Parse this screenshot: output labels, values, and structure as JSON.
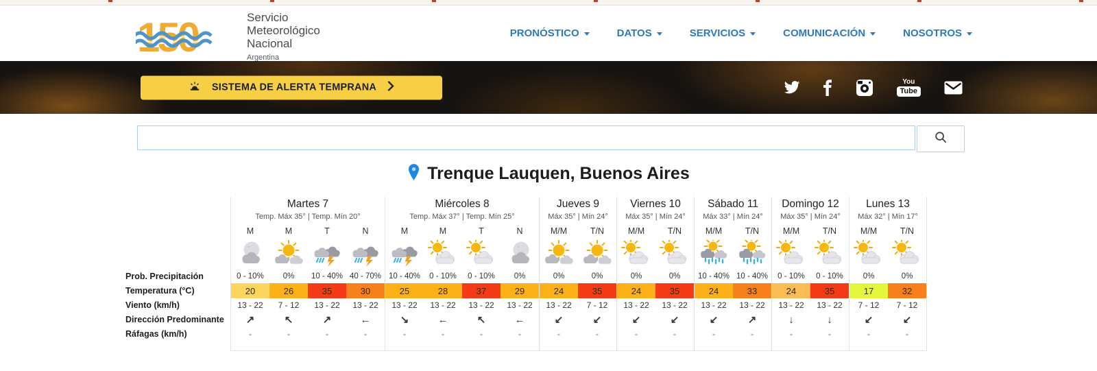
{
  "header": {
    "logo": {
      "anniversary": "150",
      "name_lines": [
        "Servicio",
        "Meteorológico",
        "Nacional"
      ],
      "country": "Argentina"
    },
    "nav": [
      {
        "label": "PRONÓSTICO"
      },
      {
        "label": "DATOS"
      },
      {
        "label": "SERVICIOS"
      },
      {
        "label": "COMUNICACIÓN"
      },
      {
        "label": "NOSOTROS"
      }
    ]
  },
  "hero": {
    "alert_label": "SISTEMA DE ALERTA TEMPRANA",
    "social_icons": [
      "twitter-icon",
      "facebook-icon",
      "instagram-icon",
      "youtube-icon",
      "email-icon"
    ]
  },
  "search": {
    "value": "",
    "placeholder": ""
  },
  "location": {
    "title": "Trenque Lauquen, Buenos Aires"
  },
  "colors": {
    "nav_blue": "#2e79b9",
    "alert_yellow": "#f7cf45",
    "temp_red": "#f43a17",
    "temp_orange": "#f8801c",
    "temp_amber": "#fbb117",
    "temp_light_gold": "#fbd55e",
    "temp_sandy": "#fbbb55",
    "temp_chartreuse": "#e3f63c"
  },
  "forecast": {
    "row_labels": [
      "Prob. Precipitación",
      "Temperatura (°C)",
      "Viento (km/h)",
      "Dirección Predominante",
      "Ráfagas (km/h)"
    ],
    "days": [
      {
        "name": "Martes 7",
        "subtitle": "Temp. Máx 35° | Temp. Mín 20°",
        "periods": [
          "M",
          "M",
          "T",
          "N"
        ],
        "cells": [
          {
            "icon": "moon-cloud",
            "precip": "0 - 10%",
            "temp": "20",
            "temp_color": "#fbd55e",
            "wind": "13 - 22",
            "direction": "↗",
            "gusts": "-"
          },
          {
            "icon": "sun-clouds-gray",
            "precip": "0%",
            "temp": "26",
            "temp_color": "#fbb117",
            "wind": "7 - 12",
            "direction": "↖",
            "gusts": "-"
          },
          {
            "icon": "storm",
            "precip": "10 - 40%",
            "temp": "35",
            "temp_color": "#f43a17",
            "wind": "13 - 22",
            "direction": "↗",
            "gusts": "-"
          },
          {
            "icon": "storm",
            "precip": "40 - 70%",
            "temp": "30",
            "temp_color": "#f8801c",
            "wind": "13 - 22",
            "direction": "←",
            "gusts": "-"
          }
        ]
      },
      {
        "name": "Miércoles 8",
        "subtitle": "Temp. Máx 37° | Temp. Mín 25°",
        "periods": [
          "M",
          "M",
          "T",
          "N"
        ],
        "cells": [
          {
            "icon": "storm",
            "precip": "10 - 40%",
            "temp": "25",
            "temp_color": "#fbb117",
            "wind": "13 - 22",
            "direction": "↘",
            "gusts": "-"
          },
          {
            "icon": "sun-cloud-light",
            "precip": "0 - 10%",
            "temp": "28",
            "temp_color": "#fbb117",
            "wind": "13 - 22",
            "direction": "←",
            "gusts": "-"
          },
          {
            "icon": "sun-cloud-light",
            "precip": "0 - 10%",
            "temp": "37",
            "temp_color": "#f43a17",
            "wind": "13 - 22",
            "direction": "↖",
            "gusts": "-"
          },
          {
            "icon": "moon-cloud",
            "precip": "0%",
            "temp": "29",
            "temp_color": "#fbb117",
            "wind": "13 - 22",
            "direction": "←",
            "gusts": "-"
          }
        ]
      },
      {
        "name": "Jueves 9",
        "subtitle": "Máx 35° | Mín 24°",
        "periods": [
          "M/M",
          "T/N"
        ],
        "cells": [
          {
            "icon": "sun-clouds-gray",
            "precip": "0%",
            "temp": "24",
            "temp_color": "#fbb117",
            "wind": "13 - 22",
            "direction": "↙",
            "gusts": "-"
          },
          {
            "icon": "sun-clouds-gray",
            "precip": "0%",
            "temp": "35",
            "temp_color": "#f43a17",
            "wind": "7 - 12",
            "direction": "↙",
            "gusts": "-"
          }
        ]
      },
      {
        "name": "Viernes 10",
        "subtitle": "Máx 35° | Mín 24°",
        "periods": [
          "M/M",
          "T/N"
        ],
        "cells": [
          {
            "icon": "sun-cloud-light",
            "precip": "0%",
            "temp": "24",
            "temp_color": "#fbb117",
            "wind": "13 - 22",
            "direction": "↙",
            "gusts": "-"
          },
          {
            "icon": "sun-cloud-light",
            "precip": "0%",
            "temp": "35",
            "temp_color": "#f43a17",
            "wind": "13 - 22",
            "direction": "↙",
            "gusts": "-"
          }
        ]
      },
      {
        "name": "Sábado 11",
        "subtitle": "Máx 33° | Mín 24°",
        "periods": [
          "M/M",
          "T/N"
        ],
        "cells": [
          {
            "icon": "sun-rain",
            "precip": "10 - 40%",
            "temp": "24",
            "temp_color": "#fbb117",
            "wind": "13 - 22",
            "direction": "↙",
            "gusts": "-"
          },
          {
            "icon": "sun-rain",
            "precip": "10 - 40%",
            "temp": "33",
            "temp_color": "#f8801c",
            "wind": "13 - 22",
            "direction": "↗",
            "gusts": "-"
          }
        ]
      },
      {
        "name": "Domingo 12",
        "subtitle": "Máx 35° | Mín 24°",
        "periods": [
          "M/M",
          "T/N"
        ],
        "cells": [
          {
            "icon": "sun-cloud-light",
            "precip": "0 - 10%",
            "temp": "24",
            "temp_color": "#fbbb55",
            "wind": "13 - 22",
            "direction": "↓",
            "gusts": "-"
          },
          {
            "icon": "sun-cloud-light",
            "precip": "0 - 10%",
            "temp": "35",
            "temp_color": "#f43a17",
            "wind": "13 - 22",
            "direction": "↓",
            "gusts": "-"
          }
        ]
      },
      {
        "name": "Lunes 13",
        "subtitle": "Máx 32° | Mín 17°",
        "periods": [
          "M/M",
          "T/N"
        ],
        "cells": [
          {
            "icon": "sun-cloud-light",
            "precip": "0%",
            "temp": "17",
            "temp_color": "#e3f63c",
            "wind": "7 - 12",
            "direction": "↙",
            "gusts": "-"
          },
          {
            "icon": "sun-cloud-light",
            "precip": "0%",
            "temp": "32",
            "temp_color": "#f8801c",
            "wind": "7 - 12",
            "direction": "↙",
            "gusts": "-"
          }
        ]
      }
    ]
  }
}
